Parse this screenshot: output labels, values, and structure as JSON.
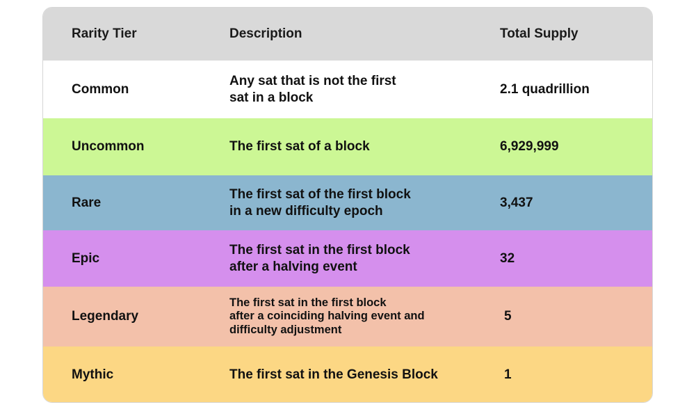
{
  "table": {
    "headers": {
      "tier": "Rarity Tier",
      "description": "Description",
      "supply": "Total Supply"
    },
    "colors": {
      "header": "#d9d9d9",
      "common": "#ffffff",
      "uncommon": "#ccf795",
      "rare": "#8bb6cf",
      "epic": "#d58fed",
      "legendary": "#f3c1aa",
      "mythic": "#fcd784"
    },
    "rows": [
      {
        "tier": "Common",
        "description": "Any sat that is not the first\nsat in a block",
        "supply": "2.1 quadrillion"
      },
      {
        "tier": "Uncommon",
        "description": "The first sat of a block",
        "supply": "6,929,999"
      },
      {
        "tier": "Rare",
        "description": "The first sat of the first block\nin a new difficulty epoch",
        "supply": "3,437"
      },
      {
        "tier": "Epic",
        "description": "The first sat in the first block\nafter a halving event",
        "supply": "32"
      },
      {
        "tier": "Legendary",
        "description": "The first sat in the first block\nafter a coinciding halving event and\ndifficulty adjustment",
        "supply": "5"
      },
      {
        "tier": "Mythic",
        "description": "The first sat in the Genesis Block",
        "supply": "1"
      }
    ]
  }
}
